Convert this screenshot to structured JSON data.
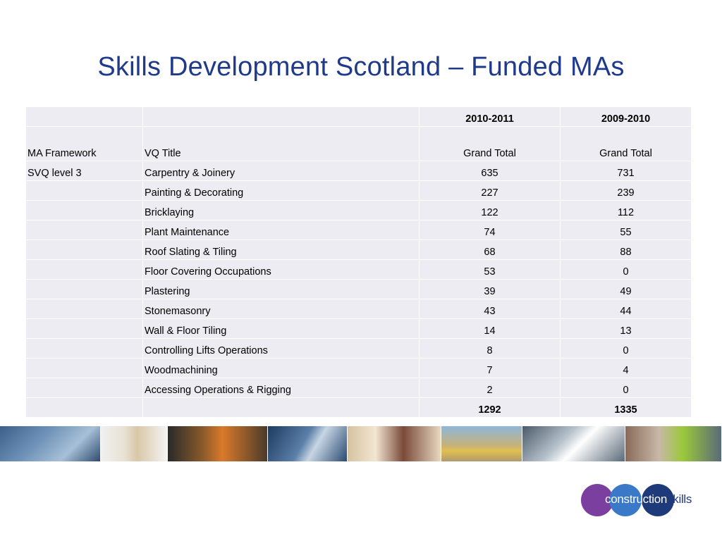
{
  "slide": {
    "title": "Skills Development Scotland – Funded MAs"
  },
  "table": {
    "year_headers": [
      "",
      "",
      "2010-2011",
      "2009-2010"
    ],
    "column_labels": [
      "MA Framework",
      "VQ Title",
      "Grand Total",
      "Grand Total"
    ],
    "rows": [
      {
        "framework": "SVQ level 3",
        "title": "Carpentry & Joinery",
        "y2010": "635",
        "y2009": "731"
      },
      {
        "framework": "",
        "title": "Painting & Decorating",
        "y2010": "227",
        "y2009": "239"
      },
      {
        "framework": "",
        "title": "Bricklaying",
        "y2010": "122",
        "y2009": "112"
      },
      {
        "framework": "",
        "title": "Plant Maintenance",
        "y2010": "74",
        "y2009": "55"
      },
      {
        "framework": "",
        "title": "Roof Slating & Tiling",
        "y2010": "68",
        "y2009": "88"
      },
      {
        "framework": "",
        "title": "Floor Covering Occupations",
        "y2010": "53",
        "y2009": "0"
      },
      {
        "framework": "",
        "title": "Plastering",
        "y2010": "39",
        "y2009": "49"
      },
      {
        "framework": "",
        "title": "Stonemasonry",
        "y2010": "43",
        "y2009": "44"
      },
      {
        "framework": "",
        "title": "Wall & Floor Tiling",
        "y2010": "14",
        "y2009": "13"
      },
      {
        "framework": "",
        "title": "Controlling Lifts Operations",
        "y2010": "8",
        "y2009": "0"
      },
      {
        "framework": "",
        "title": "Woodmachining",
        "y2010": "7",
        "y2009": "4"
      },
      {
        "framework": "",
        "title": "Accessing Operations & Rigging",
        "y2010": "2",
        "y2009": "0"
      }
    ],
    "totals": {
      "framework": "",
      "title": "",
      "y2010": "1292",
      "y2009": "1335"
    }
  },
  "logo": {
    "part1": "construction",
    "part2": "skills"
  }
}
